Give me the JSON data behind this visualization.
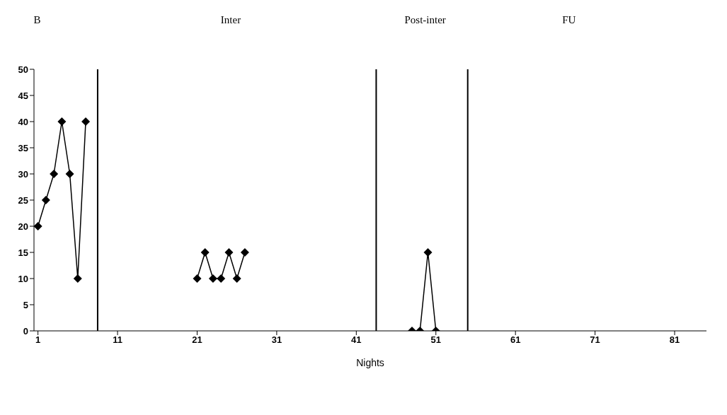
{
  "chart_data": {
    "type": "line",
    "xlabel": "Nights",
    "annotations": [
      "B",
      "Inter",
      "Post-inter",
      "FU"
    ],
    "x": [
      1,
      2,
      3,
      4,
      5,
      6,
      7,
      14,
      21,
      22,
      23,
      24,
      25,
      26,
      27,
      40,
      48,
      49,
      50,
      51
    ],
    "series": [
      {
        "color": "#000000",
        "values": [
          20,
          25,
          30,
          40,
          30,
          10,
          40,
          null,
          10,
          15,
          10,
          10,
          15,
          10,
          15,
          null,
          0,
          0,
          15,
          0
        ]
      }
    ],
    "xlim": [
      0.5,
      85
    ],
    "xticks": [
      1,
      11,
      21,
      31,
      41,
      51,
      61,
      71,
      81
    ],
    "ylim": [
      0,
      50
    ],
    "yticks": [
      0,
      5,
      10,
      15,
      20,
      25,
      30,
      35,
      40,
      45,
      50
    ],
    "ref_lines": [
      {
        "axis": "x",
        "value": 8.5,
        "color": "#000000"
      },
      {
        "axis": "x",
        "value": 43.5,
        "color": "#000000"
      },
      {
        "axis": "x",
        "value": 55,
        "color": "#000000"
      }
    ],
    "grid": false,
    "legend": false,
    "marker": "diamond",
    "line_style": "solid"
  }
}
